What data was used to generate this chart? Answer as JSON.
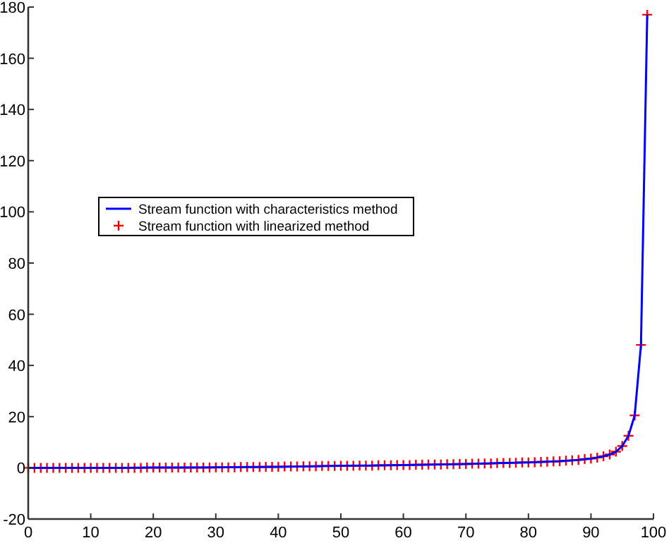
{
  "chart_data": {
    "type": "line",
    "xlim": [
      0,
      100
    ],
    "xticks": [
      0,
      10,
      20,
      30,
      40,
      50,
      60,
      70,
      80,
      90,
      100
    ],
    "ylim": [
      -20,
      180
    ],
    "yticks": [
      -20,
      0,
      20,
      40,
      60,
      80,
      100,
      120,
      140,
      160,
      180
    ],
    "grid": false,
    "legend": "left",
    "series": [
      {
        "name": "Stream function with characteristics method",
        "color": "#0000ff",
        "marker": "none",
        "line_style": "solid",
        "x": [
          0,
          5,
          10,
          15,
          20,
          25,
          30,
          35,
          40,
          45,
          50,
          55,
          60,
          65,
          70,
          75,
          80,
          85,
          88,
          90,
          91,
          92,
          93,
          94,
          95,
          96,
          97,
          98,
          99
        ],
        "values": [
          0,
          0,
          0,
          0,
          0.1,
          0.1,
          0.2,
          0.3,
          0.4,
          0.6,
          0.8,
          0.9,
          1.1,
          1.3,
          1.5,
          1.8,
          2.1,
          2.6,
          3.1,
          3.6,
          4,
          4.5,
          5.2,
          6.3,
          8.5,
          12.5,
          20.5,
          48,
          177
        ]
      },
      {
        "name": "Stream function with linearized method",
        "color": "#ff0000",
        "type": "scatter",
        "marker": "cross",
        "x": [
          0,
          1,
          2,
          3,
          4,
          5,
          6,
          7,
          8,
          9,
          10,
          11,
          12,
          13,
          14,
          15,
          16,
          17,
          18,
          19,
          20,
          21,
          22,
          23,
          24,
          25,
          26,
          27,
          28,
          29,
          30,
          31,
          32,
          33,
          34,
          35,
          36,
          37,
          38,
          39,
          40,
          41,
          42,
          43,
          44,
          45,
          46,
          47,
          48,
          49,
          50,
          51,
          52,
          53,
          54,
          55,
          56,
          57,
          58,
          59,
          60,
          61,
          62,
          63,
          64,
          65,
          66,
          67,
          68,
          69,
          70,
          71,
          72,
          73,
          74,
          75,
          76,
          77,
          78,
          79,
          80,
          81,
          82,
          83,
          84,
          85,
          86,
          87,
          88,
          89,
          90,
          91,
          92,
          93,
          94,
          95,
          96,
          97,
          98,
          99
        ],
        "values": [
          0,
          0,
          0,
          0,
          0,
          0,
          0,
          0,
          0,
          0,
          0,
          0,
          0,
          0,
          0,
          0,
          0,
          0,
          0,
          0.1,
          0.1,
          0.1,
          0.1,
          0.1,
          0.1,
          0.1,
          0.1,
          0.1,
          0.1,
          0.1,
          0.2,
          0.2,
          0.2,
          0.2,
          0.3,
          0.3,
          0.3,
          0.3,
          0.4,
          0.4,
          0.4,
          0.5,
          0.5,
          0.5,
          0.6,
          0.6,
          0.6,
          0.7,
          0.7,
          0.7,
          0.8,
          0.8,
          0.8,
          0.9,
          0.9,
          0.9,
          1,
          1,
          1,
          1.1,
          1.1,
          1.1,
          1.2,
          1.2,
          1.3,
          1.3,
          1.3,
          1.4,
          1.4,
          1.5,
          1.5,
          1.6,
          1.6,
          1.7,
          1.7,
          1.8,
          1.9,
          1.9,
          2,
          2.1,
          2.1,
          2.2,
          2.3,
          2.4,
          2.5,
          2.6,
          2.8,
          2.9,
          3.1,
          3.4,
          3.6,
          4,
          4.5,
          5.2,
          6.3,
          8.5,
          12.5,
          20.5,
          48,
          177
        ]
      }
    ]
  }
}
